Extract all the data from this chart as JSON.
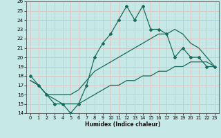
{
  "xlabel": "Humidex (Indice chaleur)",
  "xlim": [
    -0.5,
    23.5
  ],
  "ylim": [
    14,
    26
  ],
  "yticks": [
    14,
    15,
    16,
    17,
    18,
    19,
    20,
    21,
    22,
    23,
    24,
    25,
    26
  ],
  "xticks": [
    0,
    1,
    2,
    3,
    4,
    5,
    6,
    7,
    8,
    9,
    10,
    11,
    12,
    13,
    14,
    15,
    16,
    17,
    18,
    19,
    20,
    21,
    22,
    23
  ],
  "bg_color": "#c6e8e6",
  "grid_color": "#d8c8c8",
  "line_color": "#1a6b5a",
  "line1_x": [
    0,
    1,
    2,
    3,
    4,
    5,
    6,
    7,
    8,
    9,
    10,
    11,
    12,
    13,
    14,
    15,
    16,
    17,
    18,
    19,
    20,
    21,
    22,
    23
  ],
  "line1_y": [
    18,
    17,
    16,
    15,
    15,
    14,
    15,
    17,
    20,
    21.5,
    22.5,
    24,
    25.5,
    24,
    25.5,
    23,
    23,
    22.5,
    20,
    21,
    20,
    20,
    19,
    19
  ],
  "line2_x": [
    0,
    1,
    2,
    3,
    4,
    5,
    6,
    7,
    8,
    9,
    10,
    11,
    12,
    13,
    14,
    15,
    16,
    17,
    18,
    19,
    20,
    21,
    22,
    23
  ],
  "line2_y": [
    17.5,
    17,
    16,
    16,
    16,
    16,
    16.5,
    17.5,
    18.5,
    19,
    19.5,
    20,
    20.5,
    21,
    21.5,
    22,
    22.5,
    22.5,
    23,
    22.5,
    21.5,
    21,
    20,
    19
  ],
  "line3_x": [
    0,
    1,
    2,
    3,
    4,
    5,
    6,
    7,
    8,
    9,
    10,
    11,
    12,
    13,
    14,
    15,
    16,
    17,
    18,
    19,
    20,
    21,
    22,
    23
  ],
  "line3_y": [
    17.5,
    17,
    16,
    15.5,
    15,
    15,
    15,
    15.5,
    16,
    16.5,
    17,
    17,
    17.5,
    17.5,
    18,
    18,
    18.5,
    18.5,
    19,
    19,
    19.5,
    19.5,
    19.5,
    19
  ]
}
